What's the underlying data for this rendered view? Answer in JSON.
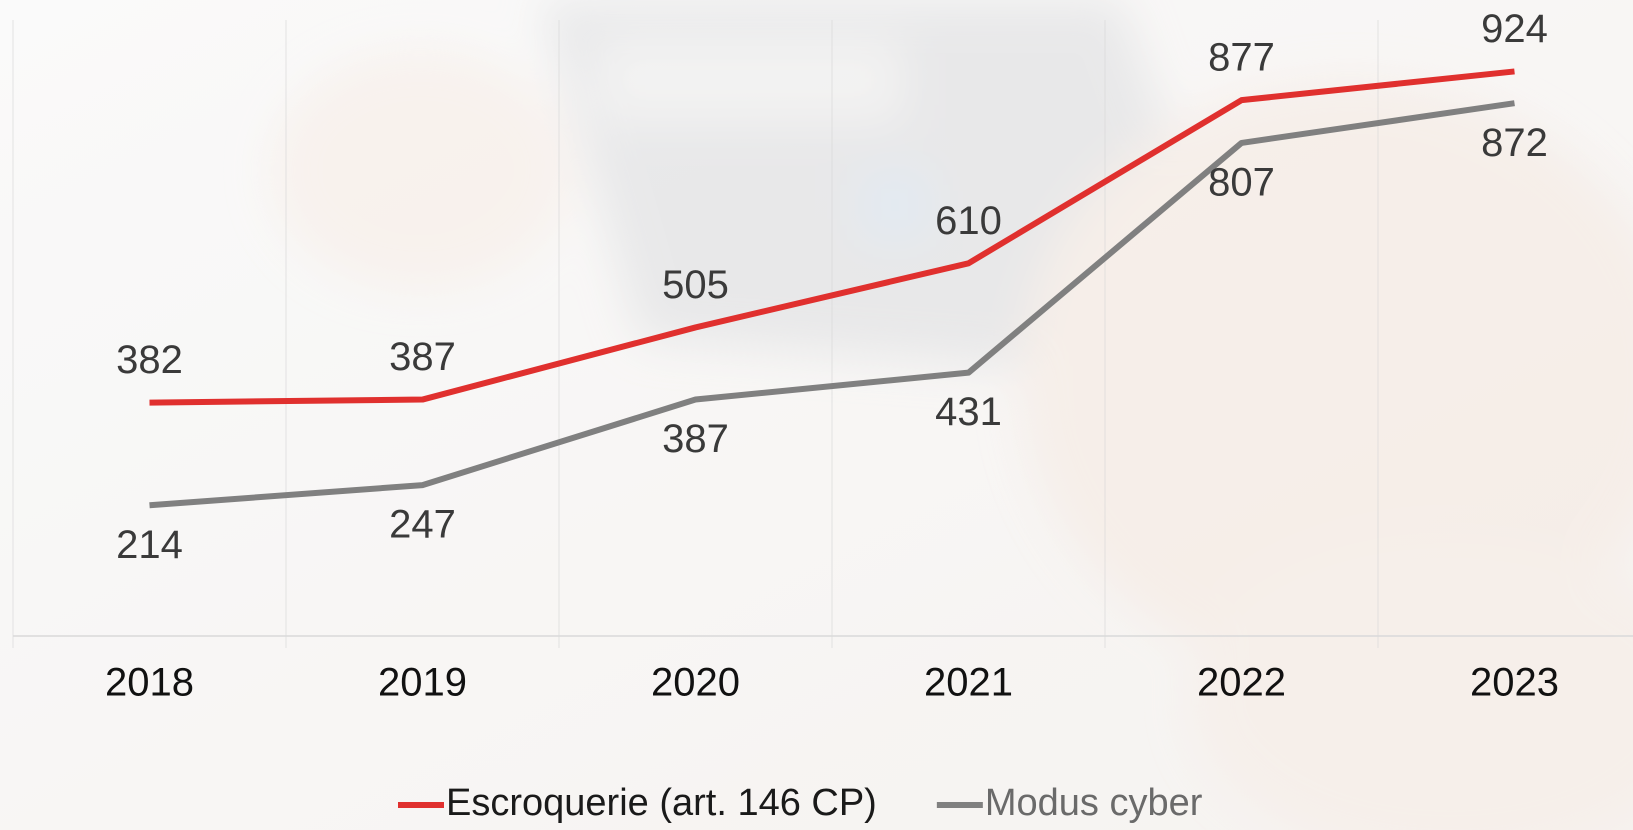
{
  "chart_data": {
    "type": "line",
    "categories": [
      "2018",
      "2019",
      "2020",
      "2021",
      "2022",
      "2023"
    ],
    "series": [
      {
        "name": "Escroquerie (art. 146 CP)",
        "color": "#e0302e",
        "values": [
          382,
          387,
          505,
          610,
          877,
          924
        ]
      },
      {
        "name": "Modus cyber",
        "color": "#808080",
        "values": [
          214,
          247,
          387,
          431,
          807,
          872
        ]
      }
    ],
    "ylim": [
      0,
      1000
    ]
  }
}
